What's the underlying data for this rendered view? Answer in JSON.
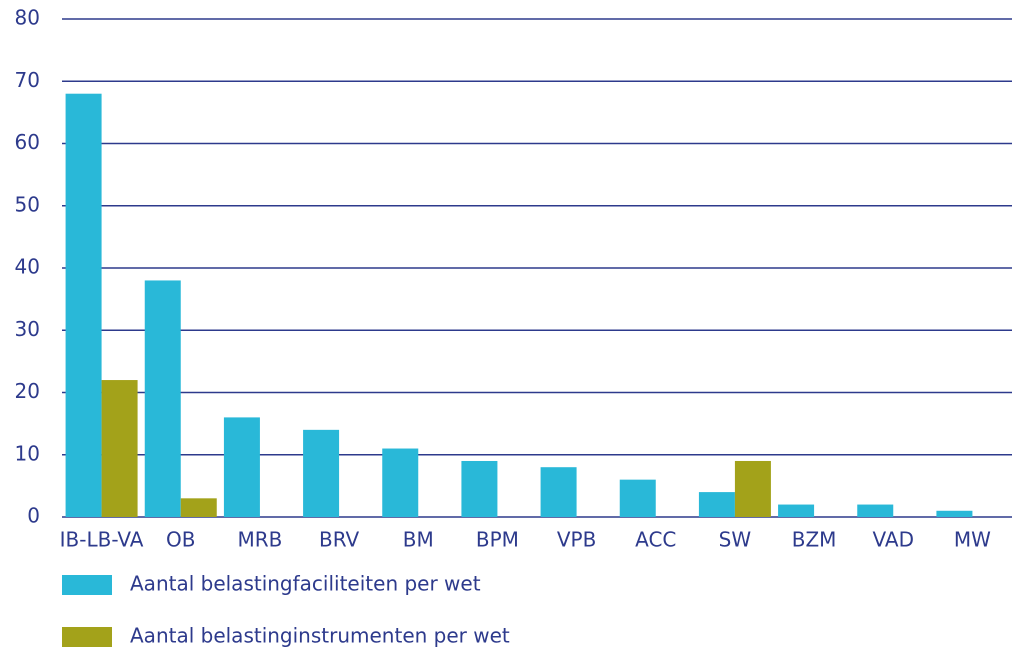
{
  "chart_data": {
    "type": "bar",
    "categories": [
      "IB-LB-VA",
      "OB",
      "MRB",
      "BRV",
      "BM",
      "BPM",
      "VPB",
      "ACC",
      "SW",
      "BZM",
      "VAD",
      "MW"
    ],
    "series": [
      {
        "name": "Aantal belastingfaciliteiten per wet",
        "color": "#29b8d8",
        "values": [
          68,
          38,
          16,
          14,
          11,
          9,
          8,
          6,
          4,
          2,
          2,
          1
        ]
      },
      {
        "name": "Aantal belastinginstrumenten per wet",
        "color": "#a3a21a",
        "values": [
          22,
          3,
          0,
          0,
          0,
          0,
          0,
          0,
          9,
          0,
          0,
          0
        ]
      }
    ],
    "ylim": [
      0,
      80
    ],
    "yticks": [
      0,
      10,
      20,
      30,
      40,
      50,
      60,
      70,
      80
    ],
    "grid": true,
    "legend": "bottom"
  }
}
